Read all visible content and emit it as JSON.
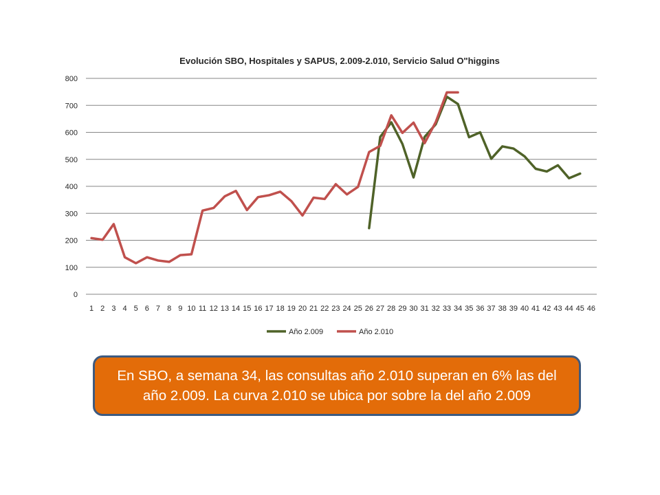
{
  "chart_data": {
    "type": "line",
    "title": "Evolución SBO, Hospitales y SAPUS, 2.009-2.010, Servicio Salud O\"higgins",
    "xlabel": "",
    "ylabel": "",
    "ylim": [
      0,
      800
    ],
    "yticks": [
      0,
      100,
      200,
      300,
      400,
      500,
      600,
      700,
      800
    ],
    "categories": [
      "1",
      "2",
      "3",
      "4",
      "5",
      "6",
      "7",
      "8",
      "9",
      "10",
      "11",
      "12",
      "13",
      "14",
      "15",
      "16",
      "17",
      "18",
      "19",
      "20",
      "21",
      "22",
      "23",
      "24",
      "25",
      "26",
      "27",
      "28",
      "29",
      "30",
      "31",
      "32",
      "33",
      "34",
      "35",
      "36",
      "37",
      "38",
      "39",
      "40",
      "41",
      "42",
      "43",
      "44",
      "45",
      "46"
    ],
    "grid": true,
    "legend_position": "bottom",
    "series": [
      {
        "name": "Año 2.009",
        "color": "#4f6228",
        "values": [
          null,
          null,
          null,
          null,
          null,
          null,
          null,
          null,
          null,
          null,
          null,
          null,
          null,
          null,
          null,
          null,
          null,
          null,
          null,
          null,
          null,
          null,
          null,
          null,
          null,
          245,
          583,
          637,
          557,
          433,
          583,
          630,
          732,
          705,
          582,
          600,
          502,
          548,
          540,
          511,
          465,
          455,
          478,
          430,
          447,
          null
        ]
      },
      {
        "name": "Año 2.010",
        "color": "#c0504d",
        "values": [
          208,
          202,
          260,
          137,
          115,
          137,
          125,
          120,
          145,
          148,
          310,
          320,
          363,
          383,
          312,
          360,
          367,
          380,
          345,
          292,
          358,
          353,
          408,
          370,
          398,
          527,
          550,
          663,
          598,
          636,
          560,
          638,
          748,
          748,
          null,
          null,
          null,
          null,
          null,
          null,
          null,
          null,
          null,
          null,
          null,
          null
        ]
      }
    ]
  },
  "note": {
    "line1": "En SBO,  a semana 34, las consultas año 2.010 superan en 6% las del",
    "line2": "año 2.009. La curva 2.010  se ubica por sobre la del año 2.009"
  }
}
